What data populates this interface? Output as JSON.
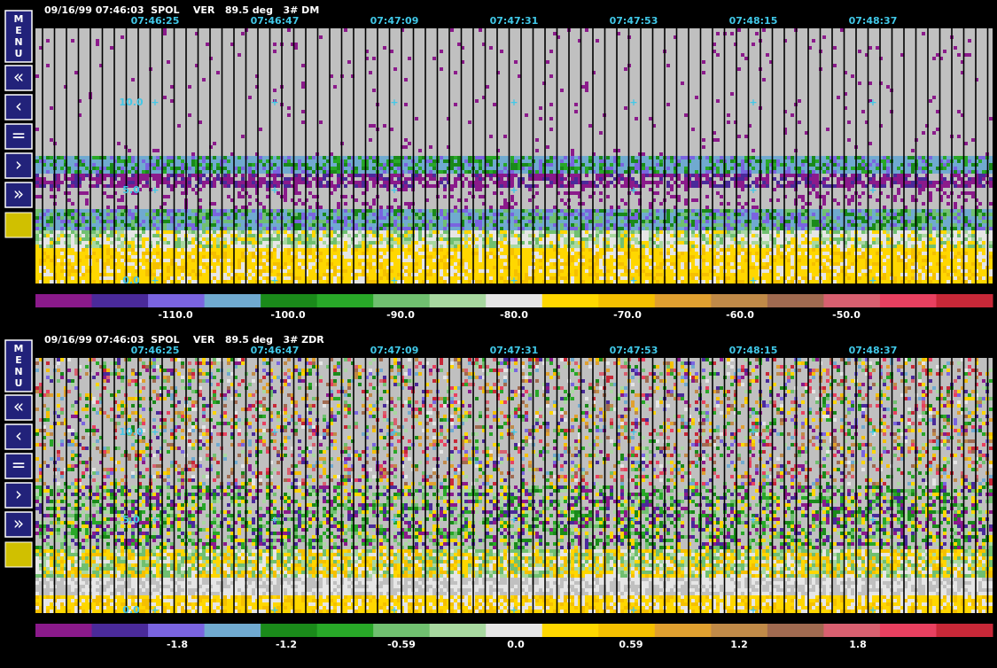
{
  "menu": {
    "title": "MENU",
    "buttons": [
      "«",
      "‹",
      "=",
      "›",
      "»"
    ]
  },
  "panels": [
    {
      "header": "09/16/99 07:46:03  SPOL    VER   89.5 deg   3# DM",
      "times": [
        "07:46:25",
        "07:46:47",
        "07:47:09",
        "07:47:31",
        "07:47:53",
        "07:48:15",
        "07:48:37"
      ],
      "range_labels": [
        "10.0",
        "5.0",
        "0.0"
      ],
      "colorbar": {
        "colors": [
          "#8b1a8b",
          "#4a2a9a",
          "#7a64e0",
          "#70aad0",
          "#1a8a1a",
          "#28a828",
          "#70c070",
          "#a8d8a0",
          "#e6e6e6",
          "#ffd700",
          "#f5c000",
          "#e0a030",
          "#c08a48",
          "#a06a50",
          "#d86070",
          "#e84060",
          "#c82838"
        ],
        "labels": [
          "-110.0",
          "-100.0",
          "-90.0",
          "-80.0",
          "-70.0",
          "-60.0",
          "-50.0"
        ]
      }
    },
    {
      "header": "09/16/99 07:46:03  SPOL    VER   89.5 deg   3# ZDR",
      "times": [
        "07:46:25",
        "07:46:47",
        "07:47:09",
        "07:47:31",
        "07:47:53",
        "07:48:15",
        "07:48:37"
      ],
      "range_labels": [
        "10.0",
        "5.0",
        "0.0"
      ],
      "colorbar": {
        "colors": [
          "#8b1a8b",
          "#4a2a9a",
          "#7a64e0",
          "#70aad0",
          "#1a8a1a",
          "#28a828",
          "#70c070",
          "#a8d8a0",
          "#e6e6e6",
          "#ffd700",
          "#f5c000",
          "#e0a030",
          "#c08a48",
          "#a06a50",
          "#d86070",
          "#e84060",
          "#c82838"
        ],
        "labels": [
          "-1.8",
          "-1.2",
          "-0.59",
          "0.0",
          "0.59",
          "1.2",
          "1.8"
        ]
      }
    }
  ]
}
